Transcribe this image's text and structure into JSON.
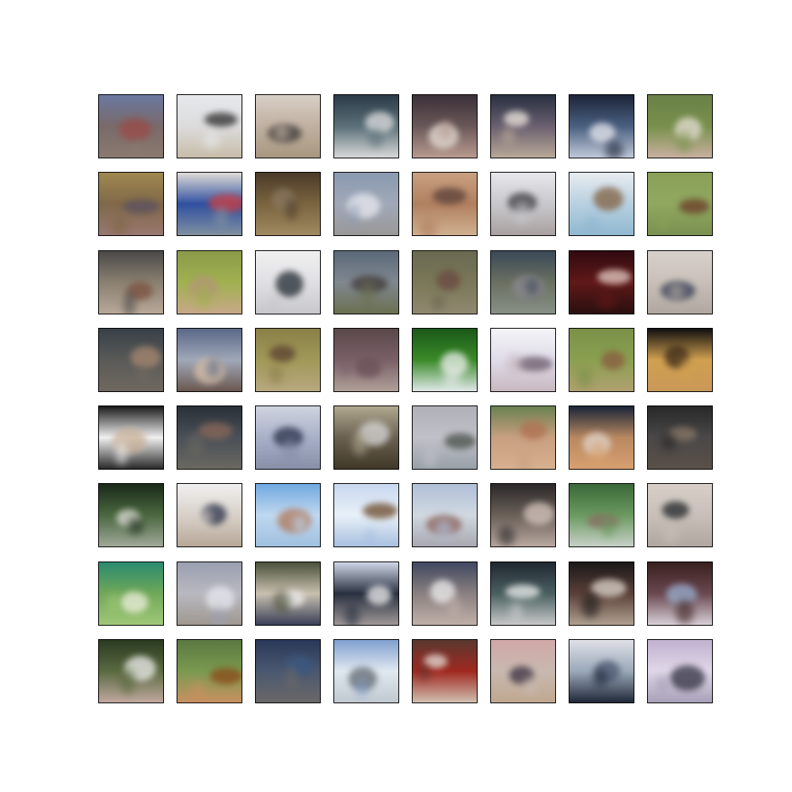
{
  "figure": {
    "background": "#ffffff",
    "frame_color": "#000000",
    "rows": 8,
    "cols": 8,
    "tiles": [
      {
        "bg": [
          "#6a78a0",
          "#7a6a6a",
          "#8a7a70"
        ],
        "fg": "#9a4a48"
      },
      {
        "bg": [
          "#e6e8ec",
          "#dcdcdc",
          "#c8bca8"
        ],
        "fg": "#2a2a2a"
      },
      {
        "bg": [
          "#d8d0c8",
          "#c0b0a0",
          "#a89880"
        ],
        "fg": "#3a3838"
      },
      {
        "bg": [
          "#2c3a48",
          "#5a7078",
          "#d8d8d8"
        ],
        "fg": "#e0e0e0"
      },
      {
        "bg": [
          "#3a3038",
          "#6a5858",
          "#b89a90"
        ],
        "fg": "#e8e0d8"
      },
      {
        "bg": [
          "#283040",
          "#6a6070",
          "#b8a898"
        ],
        "fg": "#f0e8e0"
      },
      {
        "bg": [
          "#1c2438",
          "#4a6080",
          "#c0c8d8"
        ],
        "fg": "#e8e8f0"
      },
      {
        "bg": [
          "#6a8048",
          "#78904c",
          "#c8b0a0"
        ],
        "fg": "#e8e0d8"
      },
      {
        "bg": [
          "#a08850",
          "#806848",
          "#987870"
        ],
        "fg": "#5a5060"
      },
      {
        "bg": [
          "#e0dcd8",
          "#3050a0",
          "#8090a0"
        ],
        "fg": "#d04040"
      },
      {
        "bg": [
          "#4a3a28",
          "#7a6440",
          "#a08a60"
        ],
        "fg": "#8a7860"
      },
      {
        "bg": [
          "#8a9ab0",
          "#a0a8b8",
          "#9a9898"
        ],
        "fg": "#e8eaf0"
      },
      {
        "bg": [
          "#c8a080",
          "#b08060",
          "#d0b090"
        ],
        "fg": "#5a4038"
      },
      {
        "bg": [
          "#e8e8ec",
          "#c8c8cc",
          "#a8a0a0"
        ],
        "fg": "#3a3a40"
      },
      {
        "bg": [
          "#e8ecf0",
          "#b8d0e0",
          "#90b8d0"
        ],
        "fg": "#806040"
      },
      {
        "bg": [
          "#8aa058",
          "#90a860",
          "#7a9050"
        ],
        "fg": "#6a3a28"
      },
      {
        "bg": [
          "#4a4848",
          "#8a8070",
          "#b8a898"
        ],
        "fg": "#7a5040"
      },
      {
        "bg": [
          "#8a9a48",
          "#a0b050",
          "#c8a888"
        ],
        "fg": "#b89080"
      },
      {
        "bg": [
          "#f0f0f0",
          "#e0e0e4",
          "#c8c8cc"
        ],
        "fg": "#202830"
      },
      {
        "bg": [
          "#5a6878",
          "#808890",
          "#6a7050"
        ],
        "fg": "#403838"
      },
      {
        "bg": [
          "#6a6850",
          "#7a7858",
          "#908870"
        ],
        "fg": "#6a4840"
      },
      {
        "bg": [
          "#3a4858",
          "#6a7060",
          "#889088"
        ],
        "fg": "#8a8890"
      },
      {
        "bg": [
          "#300a10",
          "#601818",
          "#2a1010"
        ],
        "fg": "#e8d0c8"
      },
      {
        "bg": [
          "#d8d0cc",
          "#c8c0b8",
          "#b0a8a0"
        ],
        "fg": "#303850"
      },
      {
        "bg": [
          "#384048",
          "#5a5a58",
          "#706860"
        ],
        "fg": "#a88870"
      },
      {
        "bg": [
          "#5a6888",
          "#a0a8b8",
          "#6a5850"
        ],
        "fg": "#d8c0a8"
      },
      {
        "bg": [
          "#8a8048",
          "#a09858",
          "#b8a880"
        ],
        "fg": "#5a4030"
      },
      {
        "bg": [
          "#5a4848",
          "#7a6068",
          "#b0a098"
        ],
        "fg": "#6a5058"
      },
      {
        "bg": [
          "#1a5818",
          "#3a8a28",
          "#e0e8e8"
        ],
        "fg": "#f0f0f0"
      },
      {
        "bg": [
          "#f4f4f8",
          "#e0dce8",
          "#c8b8c0"
        ],
        "fg": "#6a5868"
      },
      {
        "bg": [
          "#7a9048",
          "#8aa050",
          "#b0a070"
        ],
        "fg": "#8a5a40"
      },
      {
        "bg": [
          "#101010",
          "#d0a050",
          "#c89858"
        ],
        "fg": "#3a2818"
      },
      {
        "bg": [
          "#1a1a1a",
          "#f0f0f0",
          "#2a2a2a"
        ],
        "fg": "#c8b098"
      },
      {
        "bg": [
          "#2a3038",
          "#4a5058",
          "#6a6860"
        ],
        "fg": "#8a6858"
      },
      {
        "bg": [
          "#d0d4e0",
          "#a8b0c8",
          "#8890a8"
        ],
        "fg": "#283048"
      },
      {
        "bg": [
          "#b0a890",
          "#6a6050",
          "#403828"
        ],
        "fg": "#d8d8d8"
      },
      {
        "bg": [
          "#b0b0b8",
          "#c0c0c8",
          "#98a0a8"
        ],
        "fg": "#485048"
      },
      {
        "bg": [
          "#6a8050",
          "#c8a080",
          "#d8b090"
        ],
        "fg": "#b07050"
      },
      {
        "bg": [
          "#1a2438",
          "#b88860",
          "#d8a070"
        ],
        "fg": "#e0d8d0"
      },
      {
        "bg": [
          "#282828",
          "#4a4848",
          "#5a5048"
        ],
        "fg": "#8a7868"
      },
      {
        "bg": [
          "#1a2818",
          "#4a6840",
          "#a0a898"
        ],
        "fg": "#e0e0d8"
      },
      {
        "bg": [
          "#f0f0f0",
          "#d8d0c8",
          "#b8a898"
        ],
        "fg": "#283048"
      },
      {
        "bg": [
          "#70a8e0",
          "#c0d8f0",
          "#a0c0e0"
        ],
        "fg": "#b07858"
      },
      {
        "bg": [
          "#c8d8f0",
          "#e8f0f8",
          "#a8c0e0"
        ],
        "fg": "#6a4828"
      },
      {
        "bg": [
          "#b0c0d8",
          "#d0d8e0",
          "#a8a8b0"
        ],
        "fg": "#8a6058"
      },
      {
        "bg": [
          "#2a2828",
          "#6a6058",
          "#b8a8a0"
        ],
        "fg": "#d8c8c0"
      },
      {
        "bg": [
          "#3a6838",
          "#6a9a60",
          "#c8d0c8"
        ],
        "fg": "#8a6860"
      },
      {
        "bg": [
          "#d8d0c8",
          "#c8c0b8",
          "#b0a8a0"
        ],
        "fg": "#202428"
      },
      {
        "bg": [
          "#2a8a70",
          "#70a858",
          "#a0c878"
        ],
        "fg": "#f0f0e0"
      },
      {
        "bg": [
          "#9aa0b0",
          "#b8b8c0",
          "#a09890"
        ],
        "fg": "#e8e8f0"
      },
      {
        "bg": [
          "#4a5038",
          "#c8c0b0",
          "#3a4058"
        ],
        "fg": "#f0f0f0"
      },
      {
        "bg": [
          "#d0d8e8",
          "#283040",
          "#a09898"
        ],
        "fg": "#f0f0f0"
      },
      {
        "bg": [
          "#404860",
          "#8a8080",
          "#c0b0a8"
        ],
        "fg": "#f0f0f0"
      },
      {
        "bg": [
          "#202830",
          "#4a6060",
          "#c8c8c8"
        ],
        "fg": "#f0f0f0"
      },
      {
        "bg": [
          "#1a1818",
          "#5a4038",
          "#b0a090"
        ],
        "fg": "#e0d8d0"
      },
      {
        "bg": [
          "#3a2020",
          "#6a4850",
          "#d8d0d8"
        ],
        "fg": "#9ab0d0"
      },
      {
        "bg": [
          "#2a3a20",
          "#5a6a40",
          "#c0a8a0"
        ],
        "fg": "#f0f0f0"
      },
      {
        "bg": [
          "#5a7840",
          "#7a9a50",
          "#c89060"
        ],
        "fg": "#8a4818"
      },
      {
        "bg": [
          "#2a3858",
          "#4a5870",
          "#6a6868"
        ],
        "fg": "#3a5880"
      },
      {
        "bg": [
          "#80a0d0",
          "#e0e8f0",
          "#c0c8d0"
        ],
        "fg": "#606870"
      },
      {
        "bg": [
          "#5a3830",
          "#a02820",
          "#d0c0b0"
        ],
        "fg": "#e8e0d8"
      },
      {
        "bg": [
          "#d0a8a8",
          "#c8b8b0",
          "#c0a890"
        ],
        "fg": "#3a3040"
      },
      {
        "bg": [
          "#e0e0e8",
          "#9aa8b8",
          "#202838"
        ],
        "fg": "#4a5870"
      },
      {
        "bg": [
          "#c0b0d0",
          "#e0d8e8",
          "#a8a0b8"
        ],
        "fg": "#303040"
      }
    ]
  }
}
